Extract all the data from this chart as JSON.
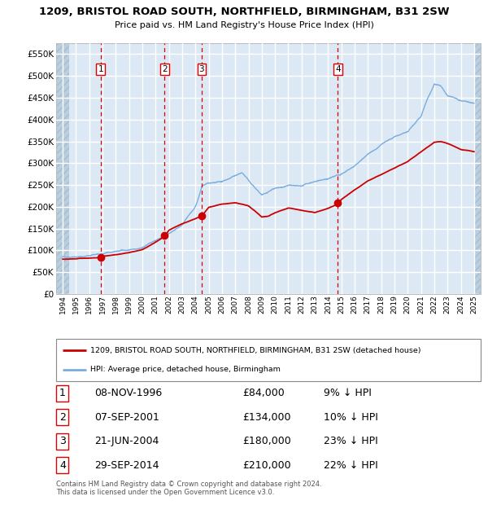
{
  "title": "1209, BRISTOL ROAD SOUTH, NORTHFIELD, BIRMINGHAM, B31 2SW",
  "subtitle": "Price paid vs. HM Land Registry's House Price Index (HPI)",
  "ylabel_ticks": [
    "£0",
    "£50K",
    "£100K",
    "£150K",
    "£200K",
    "£250K",
    "£300K",
    "£350K",
    "£400K",
    "£450K",
    "£500K",
    "£550K"
  ],
  "ytick_vals": [
    0,
    50000,
    100000,
    150000,
    200000,
    250000,
    300000,
    350000,
    400000,
    450000,
    500000,
    550000
  ],
  "ylim": [
    0,
    575000
  ],
  "background_plot": "#dce9f5",
  "background_hatch_color": "#b8cfe0",
  "grid_color": "#ffffff",
  "red_line_color": "#cc0000",
  "blue_line_color": "#7aaddd",
  "sale_points": [
    {
      "date_num": 1996.86,
      "price": 84000,
      "label": "1"
    },
    {
      "date_num": 2001.68,
      "price": 134000,
      "label": "2"
    },
    {
      "date_num": 2004.47,
      "price": 180000,
      "label": "3"
    },
    {
      "date_num": 2014.74,
      "price": 210000,
      "label": "4"
    }
  ],
  "sale_vlines": [
    1996.86,
    2001.68,
    2004.47,
    2014.74
  ],
  "legend_label_red": "1209, BRISTOL ROAD SOUTH, NORTHFIELD, BIRMINGHAM, B31 2SW (detached house)",
  "legend_label_blue": "HPI: Average price, detached house, Birmingham",
  "table_rows": [
    {
      "num": "1",
      "date": "08-NOV-1996",
      "price": "£84,000",
      "hpi": "9% ↓ HPI"
    },
    {
      "num": "2",
      "date": "07-SEP-2001",
      "price": "£134,000",
      "hpi": "10% ↓ HPI"
    },
    {
      "num": "3",
      "date": "21-JUN-2004",
      "price": "£180,000",
      "hpi": "23% ↓ HPI"
    },
    {
      "num": "4",
      "date": "29-SEP-2014",
      "price": "£210,000",
      "hpi": "22% ↓ HPI"
    }
  ],
  "footer": "Contains HM Land Registry data © Crown copyright and database right 2024.\nThis data is licensed under the Open Government Licence v3.0.",
  "xlim_start": 1993.5,
  "xlim_end": 2025.5,
  "hatch_end": 1994.5,
  "hatch_start_right": 2025.0,
  "xticks": [
    1994,
    1995,
    1996,
    1997,
    1998,
    1999,
    2000,
    2001,
    2002,
    2003,
    2004,
    2005,
    2006,
    2007,
    2008,
    2009,
    2010,
    2011,
    2012,
    2013,
    2014,
    2015,
    2016,
    2017,
    2018,
    2019,
    2020,
    2021,
    2022,
    2023,
    2024,
    2025
  ]
}
